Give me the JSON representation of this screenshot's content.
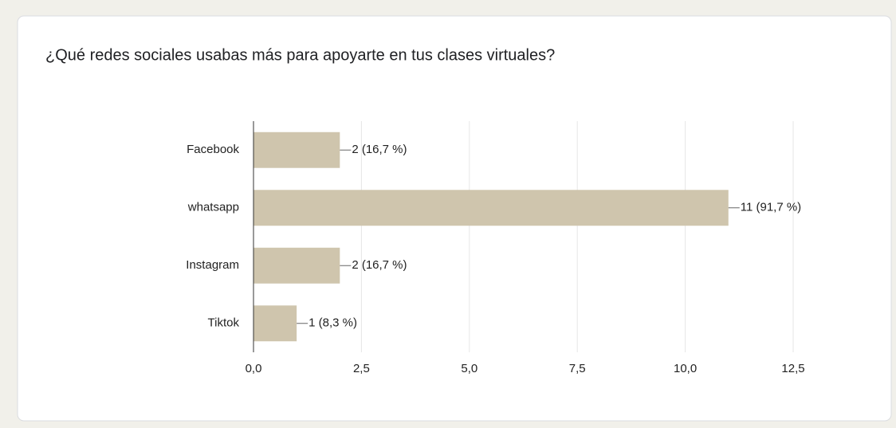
{
  "chart_data": {
    "type": "bar",
    "orientation": "horizontal",
    "title": "¿Qué redes sociales usabas más para apoyarte en tus clases virtuales?",
    "categories": [
      "Facebook",
      "whatsapp",
      "Instagram",
      "Tiktok"
    ],
    "values": [
      2,
      11,
      2,
      1
    ],
    "value_labels": [
      "2 (16,7 %)",
      "11 (91,7 %)",
      "2 (16,7 %)",
      "1 (8,3 %)"
    ],
    "color": "#cfc5ad",
    "xlim": [
      0,
      12.5
    ],
    "xticks": [
      {
        "value": 0,
        "label": "0,0"
      },
      {
        "value": 2.5,
        "label": "2,5"
      },
      {
        "value": 5,
        "label": "5,0"
      },
      {
        "value": 7.5,
        "label": "7,5"
      },
      {
        "value": 10,
        "label": "10,0"
      },
      {
        "value": 12.5,
        "label": "12,5"
      }
    ],
    "grid": true
  }
}
